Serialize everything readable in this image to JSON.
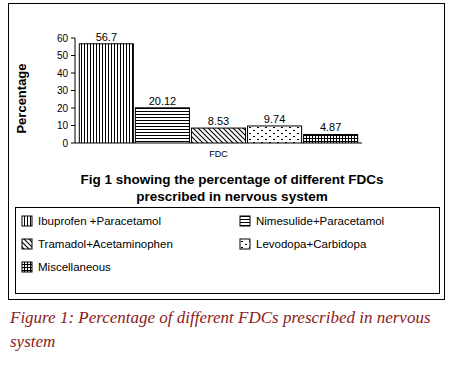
{
  "chart_data": {
    "type": "bar",
    "title": "Fig 1 showing the percentage of different FDCs prescribed in nervous system",
    "caption": "Figure 1: Percentage of different FDCs prescribed in nervous system",
    "x_label": "FDC",
    "y_label": "Percentage",
    "categories": [
      "FDC"
    ],
    "series": [
      {
        "name": "Ibuprofen +Paracetamol",
        "values": [
          56.7
        ]
      },
      {
        "name": "Nimesulide+Paracetamol",
        "values": [
          20.12
        ]
      },
      {
        "name": "Tramadol+Acetaminophen",
        "values": [
          8.53
        ]
      },
      {
        "name": "Levodopa+Carbidopa",
        "values": [
          9.74
        ]
      },
      {
        "name": "Miscellaneous",
        "values": [
          4.87
        ]
      }
    ],
    "ylim": [
      0,
      60
    ],
    "yticks": [
      0,
      10,
      20,
      30,
      40,
      50,
      60
    ],
    "grid": false,
    "data_labels": true,
    "legend": "bottom"
  }
}
